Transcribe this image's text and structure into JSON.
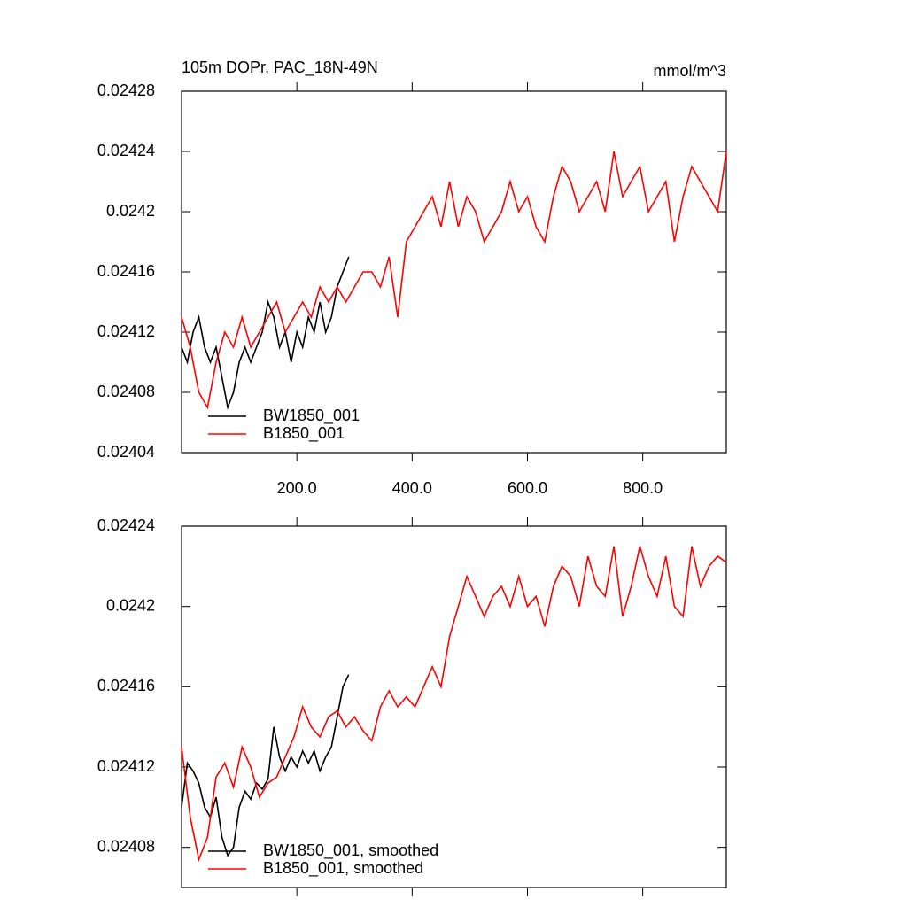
{
  "chart_data": [
    {
      "type": "line",
      "title": "105m DOPr, PAC_18N-49N",
      "units": "mmol/m^3",
      "xlim": [
        0,
        945
      ],
      "ylim": [
        0.02404,
        0.02428
      ],
      "xticks": [
        {
          "value": 200,
          "label": "200.0"
        },
        {
          "value": 400,
          "label": "400.0"
        },
        {
          "value": 600,
          "label": "600.0"
        },
        {
          "value": 800,
          "label": "800.0"
        }
      ],
      "yticks": [
        0.02404,
        0.02408,
        0.02412,
        0.02416,
        0.0242,
        0.02424,
        0.02428
      ],
      "show_xtick_labels": true,
      "legend": "lower left",
      "series": [
        {
          "name": "BW1850_001",
          "color": "#000000",
          "x": [
            0,
            10,
            20,
            30,
            40,
            50,
            60,
            70,
            80,
            90,
            100,
            110,
            120,
            130,
            140,
            150,
            160,
            170,
            180,
            190,
            200,
            210,
            220,
            230,
            240,
            250,
            260,
            270,
            280,
            290
          ],
          "values": [
            0.02411,
            0.0241,
            0.02412,
            0.02413,
            0.02411,
            0.0241,
            0.02411,
            0.02409,
            0.02407,
            0.02408,
            0.0241,
            0.02411,
            0.0241,
            0.02411,
            0.02412,
            0.02414,
            0.02413,
            0.02411,
            0.02412,
            0.0241,
            0.02412,
            0.02411,
            0.02413,
            0.02412,
            0.02414,
            0.02412,
            0.02413,
            0.02415,
            0.02416,
            0.02417
          ]
        },
        {
          "name": "B1850_001",
          "color": "#ff0000",
          "x": [
            0,
            15,
            30,
            45,
            60,
            75,
            90,
            105,
            120,
            135,
            150,
            165,
            180,
            195,
            210,
            225,
            240,
            255,
            270,
            285,
            300,
            315,
            330,
            345,
            360,
            375,
            390,
            405,
            420,
            435,
            450,
            465,
            480,
            495,
            510,
            525,
            540,
            555,
            570,
            585,
            600,
            615,
            630,
            645,
            660,
            675,
            690,
            705,
            720,
            735,
            750,
            765,
            780,
            795,
            810,
            825,
            840,
            855,
            870,
            885,
            900,
            915,
            930,
            945
          ],
          "values": [
            0.02413,
            0.02411,
            0.02408,
            0.02407,
            0.0241,
            0.02412,
            0.02411,
            0.02413,
            0.02411,
            0.02412,
            0.02413,
            0.02414,
            0.02412,
            0.02413,
            0.02414,
            0.02413,
            0.02415,
            0.02414,
            0.02415,
            0.02414,
            0.02415,
            0.02416,
            0.02416,
            0.02415,
            0.02417,
            0.02413,
            0.02418,
            0.02419,
            0.0242,
            0.02421,
            0.02419,
            0.02422,
            0.02419,
            0.02421,
            0.0242,
            0.02418,
            0.02419,
            0.0242,
            0.02422,
            0.0242,
            0.02421,
            0.02419,
            0.02418,
            0.02421,
            0.02423,
            0.02422,
            0.0242,
            0.02421,
            0.02422,
            0.0242,
            0.02424,
            0.02421,
            0.02422,
            0.02423,
            0.0242,
            0.02421,
            0.02422,
            0.02418,
            0.02421,
            0.02423,
            0.02422,
            0.02421,
            0.0242,
            0.02424
          ]
        }
      ]
    },
    {
      "type": "line",
      "xlim": [
        0,
        945
      ],
      "ylim": [
        0.02406,
        0.02424
      ],
      "xticks": [
        200,
        400,
        600,
        800
      ],
      "yticks": [
        0.02408,
        0.02412,
        0.02416,
        0.0242,
        0.02424
      ],
      "show_xtick_labels": false,
      "legend": "lower left",
      "series": [
        {
          "name": "BW1850_001, smoothed",
          "color": "#000000",
          "x": [
            0,
            10,
            20,
            30,
            40,
            50,
            60,
            70,
            80,
            90,
            100,
            110,
            120,
            130,
            140,
            150,
            160,
            170,
            180,
            190,
            200,
            210,
            220,
            230,
            240,
            250,
            260,
            270,
            280,
            290
          ],
          "values": [
            0.0241,
            0.024122,
            0.024118,
            0.024112,
            0.0241,
            0.024095,
            0.024105,
            0.024085,
            0.024076,
            0.02408,
            0.0241,
            0.024108,
            0.024104,
            0.024112,
            0.024109,
            0.024114,
            0.02414,
            0.024125,
            0.024118,
            0.024125,
            0.02412,
            0.024128,
            0.024122,
            0.024128,
            0.024118,
            0.024125,
            0.02413,
            0.024145,
            0.02416,
            0.024166
          ]
        },
        {
          "name": "B1850_001, smoothed",
          "color": "#ff0000",
          "x": [
            0,
            15,
            30,
            45,
            60,
            75,
            90,
            105,
            120,
            135,
            150,
            165,
            180,
            195,
            210,
            225,
            240,
            255,
            270,
            285,
            300,
            315,
            330,
            345,
            360,
            375,
            390,
            405,
            420,
            435,
            450,
            465,
            480,
            495,
            510,
            525,
            540,
            555,
            570,
            585,
            600,
            615,
            630,
            645,
            660,
            675,
            690,
            705,
            720,
            735,
            750,
            765,
            780,
            795,
            810,
            825,
            840,
            855,
            870,
            885,
            900,
            915,
            930,
            945
          ],
          "values": [
            0.02413,
            0.024095,
            0.024074,
            0.024085,
            0.024115,
            0.024122,
            0.02411,
            0.02413,
            0.02412,
            0.024105,
            0.024112,
            0.024115,
            0.024125,
            0.024135,
            0.02415,
            0.02414,
            0.024135,
            0.024145,
            0.024148,
            0.02414,
            0.024145,
            0.024138,
            0.024133,
            0.02415,
            0.024158,
            0.02415,
            0.024155,
            0.02415,
            0.02416,
            0.02417,
            0.02416,
            0.024185,
            0.0242,
            0.024215,
            0.024205,
            0.024195,
            0.024205,
            0.02421,
            0.0242,
            0.024215,
            0.0242,
            0.024205,
            0.02419,
            0.02421,
            0.02422,
            0.024215,
            0.0242,
            0.024225,
            0.02421,
            0.024205,
            0.02423,
            0.024195,
            0.02421,
            0.02423,
            0.024215,
            0.024205,
            0.024225,
            0.0242,
            0.024195,
            0.02423,
            0.02421,
            0.02422,
            0.024225,
            0.024222
          ]
        }
      ]
    }
  ]
}
